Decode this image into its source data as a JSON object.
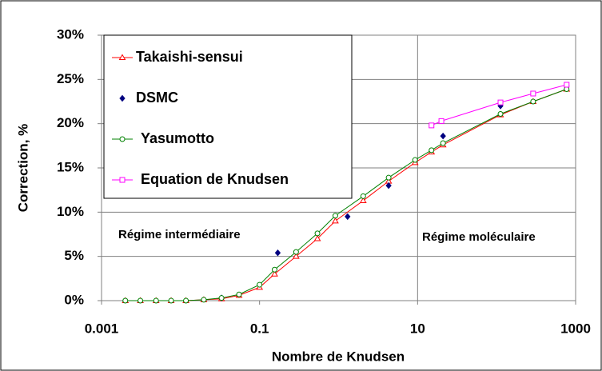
{
  "chart_data": {
    "type": "line",
    "xlabel": "Nombre de Knudsen",
    "ylabel": "Correction, %",
    "xscale": "log",
    "xlim": [
      0.001,
      1000
    ],
    "xticks": [
      0.001,
      0.1,
      10,
      1000
    ],
    "ylim": [
      0,
      30
    ],
    "yticks": [
      {
        "value": 0,
        "label": "0%"
      },
      {
        "value": 5,
        "label": "5%"
      },
      {
        "value": 10,
        "label": "10%"
      },
      {
        "value": 15,
        "label": "15%"
      },
      {
        "value": 20,
        "label": "20%"
      },
      {
        "value": 25,
        "label": "25%"
      },
      {
        "value": 30,
        "label": "30%"
      }
    ],
    "grid": true,
    "vline": 10,
    "legend": "upper left",
    "annotations": [
      {
        "text": "Régime intermédiaire"
      },
      {
        "text": "Régime moléculaire"
      }
    ],
    "series": [
      {
        "name": "Takaishi-sensui",
        "color": "#ff0000",
        "marker": "triangle",
        "mode": "lines+markers",
        "x": [
          0.002,
          0.0031,
          0.0049,
          0.0076,
          0.0117,
          0.0197,
          0.033,
          0.055,
          0.1,
          0.155,
          0.29,
          0.54,
          0.91,
          2.05,
          4.3,
          9.3,
          15,
          21,
          112,
          290,
          770
        ],
        "values": [
          0,
          0,
          0,
          0,
          0,
          0.1,
          0.2,
          0.6,
          1.5,
          3.0,
          5.0,
          7.0,
          9.0,
          11.3,
          13.5,
          15.6,
          16.8,
          17.6,
          21.0,
          22.5,
          23.9
        ]
      },
      {
        "name": "DSMC",
        "color": "#000080",
        "marker": "diamond",
        "mode": "markers",
        "x": [
          0.033,
          0.17,
          1.3,
          4.3,
          21,
          112,
          770
        ],
        "values": [
          0.3,
          5.4,
          9.5,
          13.0,
          18.6,
          22.0,
          24.3
        ]
      },
      {
        "name": "Yasumotto",
        "color": "#008000",
        "marker": "circle",
        "mode": "lines+markers",
        "x": [
          0.002,
          0.0031,
          0.0049,
          0.0076,
          0.0117,
          0.0197,
          0.033,
          0.055,
          0.1,
          0.155,
          0.29,
          0.54,
          0.91,
          2.05,
          4.3,
          9.3,
          15,
          21,
          112,
          290,
          770
        ],
        "values": [
          0,
          0,
          0,
          0,
          0,
          0.1,
          0.3,
          0.7,
          1.8,
          3.5,
          5.5,
          7.6,
          9.6,
          11.8,
          13.9,
          15.9,
          17.0,
          17.8,
          21.1,
          22.5,
          23.9
        ]
      },
      {
        "name": "Equation de Knudsen",
        "color": "#ff00ff",
        "marker": "square",
        "mode": "lines+markers",
        "x": [
          15,
          20,
          112,
          290,
          770
        ],
        "values": [
          19.8,
          20.3,
          22.4,
          23.4,
          24.4
        ]
      }
    ]
  }
}
